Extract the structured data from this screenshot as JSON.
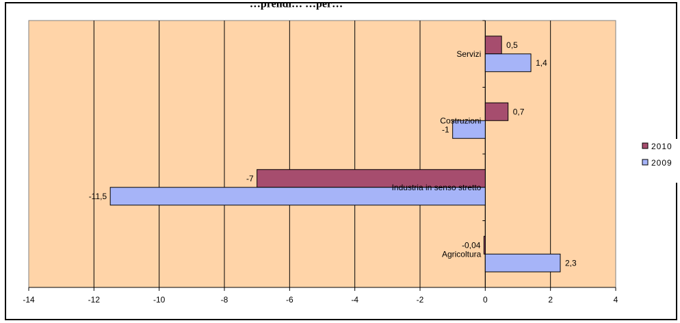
{
  "chart_data": {
    "type": "bar",
    "orientation": "horizontal",
    "title": "",
    "title_partial": "...prendi... ...per...",
    "categories": [
      "Agricoltura",
      "Industria in senso stretto",
      "Costruzioni",
      "Servizi"
    ],
    "series": [
      {
        "name": "2010",
        "values": [
          -0.04,
          -7,
          0.7,
          0.5
        ],
        "labels": [
          "-0,04",
          "-7",
          "0,7",
          "0,5"
        ],
        "color": "#A64D6E"
      },
      {
        "name": "2009",
        "values": [
          2.3,
          -11.5,
          -1,
          1.4
        ],
        "labels": [
          "2,3",
          "-11,5",
          "-1",
          "1,4"
        ],
        "color": "#A6B4F8"
      }
    ],
    "xlim": [
      -14,
      4
    ],
    "x_ticks": [
      -14,
      -12,
      -10,
      -8,
      -6,
      -4,
      -2,
      0,
      2,
      4
    ],
    "x_tick_labels": [
      "-14",
      "-12",
      "-10",
      "-8",
      "-6",
      "-4",
      "-2",
      "0",
      "2",
      "4"
    ],
    "xlabel": "",
    "ylabel": "",
    "grid": "vertical",
    "legend_position": "right",
    "plot_background": "#FFD4A8"
  }
}
